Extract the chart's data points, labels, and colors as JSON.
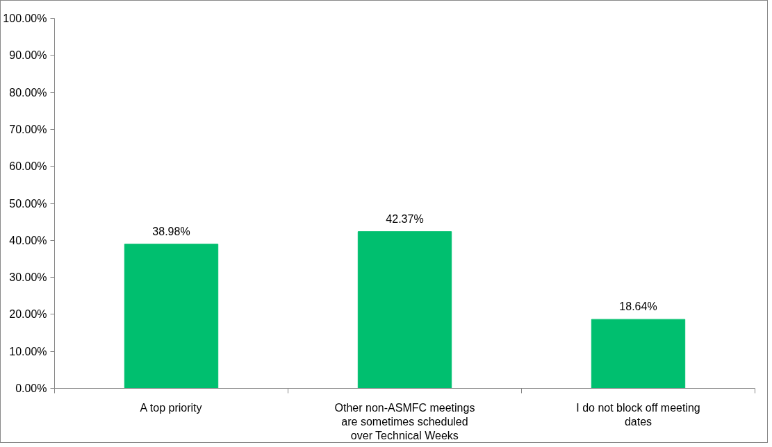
{
  "chart_data": {
    "type": "bar",
    "categories": [
      "A top priority",
      "Other non-ASMFC meetings are sometimes scheduled over Technical Weeks",
      "I do not block off meeting dates"
    ],
    "values": [
      38.98,
      42.37,
      18.64
    ],
    "value_labels": [
      "38.98%",
      "42.37%",
      "18.64%"
    ],
    "color": "#00bf6f",
    "ylim": [
      0,
      100
    ],
    "yticks": [
      {
        "value": 0,
        "label": "0.00%"
      },
      {
        "value": 10,
        "label": "10.00%"
      },
      {
        "value": 20,
        "label": "20.00%"
      },
      {
        "value": 30,
        "label": "30.00%"
      },
      {
        "value": 40,
        "label": "40.00%"
      },
      {
        "value": 50,
        "label": "50.00%"
      },
      {
        "value": 60,
        "label": "60.00%"
      },
      {
        "value": 70,
        "label": "70.00%"
      },
      {
        "value": 80,
        "label": "80.00%"
      },
      {
        "value": 90,
        "label": "90.00%"
      },
      {
        "value": 100,
        "label": "100.00%"
      }
    ],
    "grid": false
  }
}
